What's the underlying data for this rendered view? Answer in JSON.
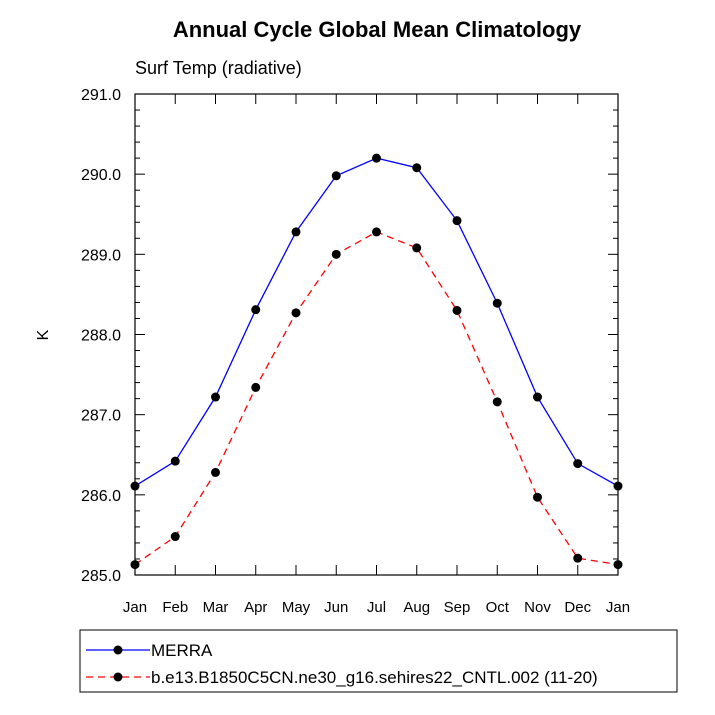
{
  "chart_data": {
    "type": "line",
    "title": "Annual Cycle Global Mean Climatology",
    "subtitle": "Surf Temp (radiative)",
    "xlabel": "",
    "ylabel": "K",
    "categories": [
      "Jan",
      "Feb",
      "Mar",
      "Apr",
      "May",
      "Jun",
      "Jul",
      "Aug",
      "Sep",
      "Oct",
      "Nov",
      "Dec",
      "Jan"
    ],
    "ylim": [
      285.0,
      291.0
    ],
    "yticks": [
      "285.0",
      "286.0",
      "287.0",
      "288.0",
      "289.0",
      "290.0",
      "291.0"
    ],
    "grid": false,
    "legend_position": "bottom",
    "series": [
      {
        "name": "MERRA",
        "color": "#0000ff",
        "style": "solid",
        "marker": "circle",
        "values": [
          286.11,
          286.42,
          287.22,
          288.31,
          289.28,
          289.98,
          290.2,
          290.08,
          289.42,
          288.39,
          287.22,
          286.39,
          286.11
        ]
      },
      {
        "name": "b.e13.B1850C5CN.ne30_g16.sehires22_CNTL.002 (11-20)",
        "color": "#ff0000",
        "style": "dashed",
        "marker": "circle",
        "values": [
          285.13,
          285.48,
          286.28,
          287.34,
          288.27,
          289.0,
          289.28,
          289.08,
          288.3,
          287.16,
          285.97,
          285.21,
          285.13
        ]
      }
    ]
  }
}
